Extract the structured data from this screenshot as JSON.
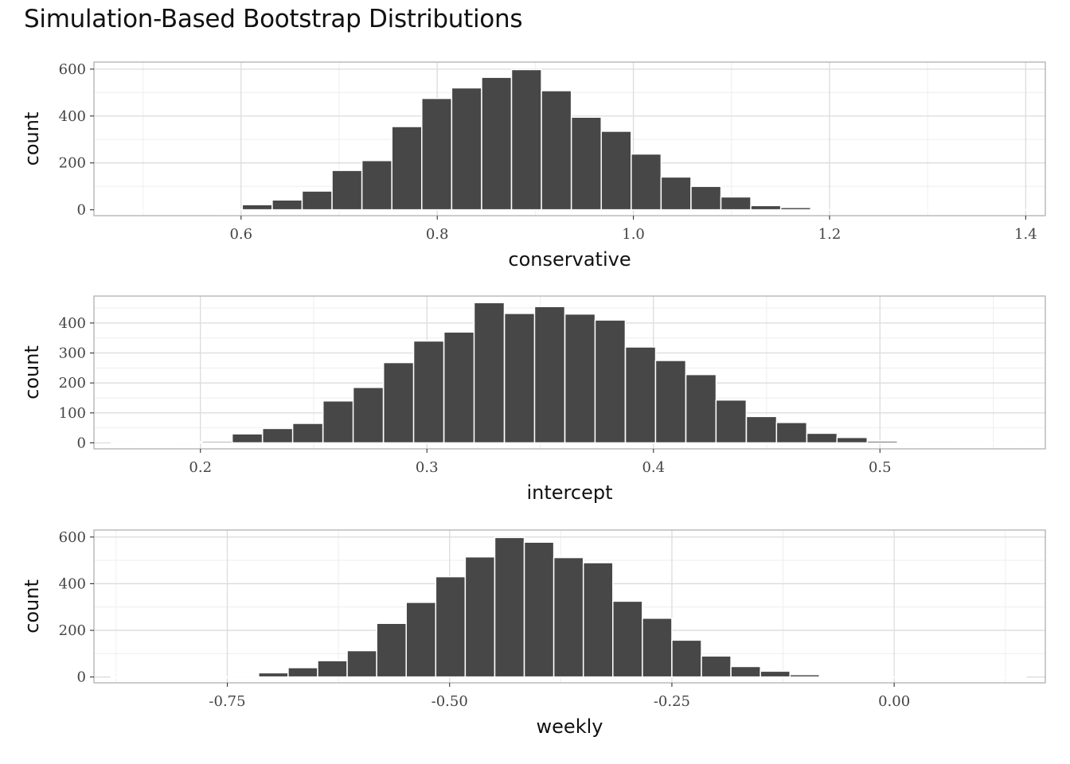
{
  "title": "Simulation-Based Bootstrap Distributions",
  "chart_data": [
    {
      "type": "bar",
      "name": "conservative",
      "xlabel": "conservative",
      "ylabel": "count",
      "xlim": [
        0.45,
        1.42
      ],
      "ylim": [
        -25,
        630
      ],
      "xticks": [
        0.6,
        0.8,
        1.0,
        1.2,
        1.4
      ],
      "xtick_labels": [
        "0.6",
        "0.8",
        "1.0",
        "1.2",
        "1.4"
      ],
      "yticks": [
        0,
        200,
        400,
        600
      ],
      "ytick_labels": [
        "0",
        "200",
        "400",
        "600"
      ],
      "bin_width": 0.0305,
      "bin_centers": [
        0.464,
        0.4945,
        0.525,
        0.5555,
        0.586,
        0.6165,
        0.647,
        0.6775,
        0.708,
        0.7385,
        0.769,
        0.7995,
        0.83,
        0.8605,
        0.891,
        0.9215,
        0.952,
        0.9825,
        1.013,
        1.0435,
        1.074,
        1.1045,
        1.135,
        1.1655,
        1.196,
        1.2265,
        1.257,
        1.2875,
        1.318,
        1.3485,
        1.379,
        1.4095
      ],
      "counts": [
        0,
        0,
        0,
        0,
        2,
        22,
        42,
        80,
        168,
        210,
        355,
        475,
        520,
        565,
        598,
        508,
        395,
        335,
        238,
        140,
        100,
        55,
        18,
        10,
        0,
        0,
        0,
        0,
        0,
        0,
        0,
        0
      ]
    },
    {
      "type": "bar",
      "name": "intercept",
      "xlabel": "intercept",
      "ylabel": "count",
      "xlim": [
        0.153,
        0.573
      ],
      "ylim": [
        -20,
        490
      ],
      "xticks": [
        0.2,
        0.3,
        0.4,
        0.5
      ],
      "xtick_labels": [
        "0.2",
        "0.3",
        "0.4",
        "0.5"
      ],
      "yticks": [
        0,
        100,
        200,
        300,
        400
      ],
      "ytick_labels": [
        "0",
        "100",
        "200",
        "300",
        "400"
      ],
      "bin_width": 0.01335,
      "bin_centers": [
        0.1673,
        0.1807,
        0.194,
        0.2074,
        0.2207,
        0.2341,
        0.2474,
        0.2608,
        0.2741,
        0.2875,
        0.3008,
        0.3142,
        0.3275,
        0.3409,
        0.3542,
        0.3676,
        0.3809,
        0.3943,
        0.4076,
        0.421,
        0.4343,
        0.4477,
        0.461,
        0.4744,
        0.4877,
        0.5011,
        0.5144,
        0.5278,
        0.5411,
        0.5545,
        0.5678
      ],
      "counts": [
        0,
        1,
        3,
        5,
        30,
        48,
        65,
        140,
        185,
        268,
        340,
        370,
        468,
        432,
        455,
        430,
        410,
        320,
        275,
        228,
        143,
        88,
        68,
        32,
        18,
        6,
        2,
        0,
        0,
        0,
        0
      ]
    },
    {
      "type": "bar",
      "name": "weekly",
      "xlabel": "weekly",
      "ylabel": "count",
      "xlim": [
        -0.9,
        0.17
      ],
      "ylim": [
        -25,
        630
      ],
      "xticks": [
        -0.75,
        -0.5,
        -0.25,
        0.0
      ],
      "xtick_labels": [
        "-0.75",
        "-0.50",
        "-0.25",
        "0.00"
      ],
      "yticks": [
        0,
        200,
        400,
        600
      ],
      "ytick_labels": [
        "0",
        "200",
        "400",
        "600"
      ],
      "bin_width": 0.0332,
      "bin_centers": [
        -0.8642,
        -0.831,
        -0.7978,
        -0.7646,
        -0.7314,
        -0.6982,
        -0.665,
        -0.6318,
        -0.5986,
        -0.5654,
        -0.5322,
        -0.499,
        -0.4658,
        -0.4326,
        -0.3994,
        -0.3662,
        -0.333,
        -0.2998,
        -0.2666,
        -0.2334,
        -0.2002,
        -0.167,
        -0.1338,
        -0.1006,
        -0.0674,
        -0.0342,
        -0.001,
        0.0322,
        0.0654,
        0.0986,
        0.1318
      ],
      "counts": [
        0,
        0,
        0,
        0,
        2,
        18,
        40,
        70,
        113,
        230,
        320,
        430,
        515,
        598,
        578,
        512,
        490,
        325,
        252,
        158,
        90,
        45,
        25,
        10,
        0,
        0,
        0,
        0,
        0,
        0,
        0
      ]
    }
  ],
  "colors": {
    "bar_fill": "#474747",
    "bar_stroke": "#ffffff",
    "panel_border": "#b0b0b0",
    "grid_major": "#dcdcdc",
    "grid_minor": "#eeeeee",
    "tick_text": "#444444",
    "title_text": "#111111"
  }
}
